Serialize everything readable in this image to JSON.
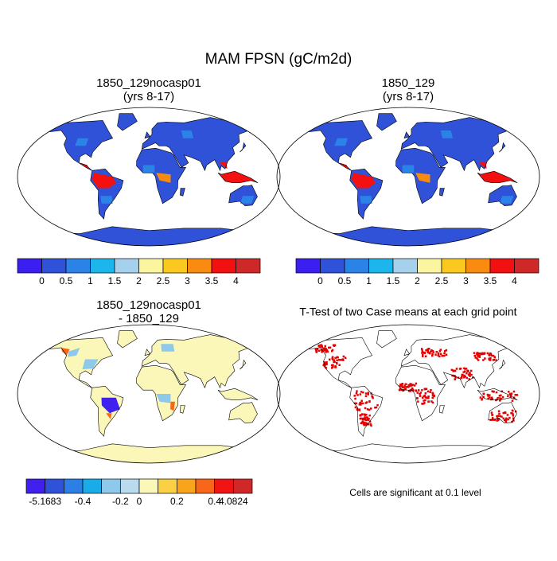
{
  "title": "MAM FPSN (gC/m2d)",
  "panels": [
    {
      "title_lines": [
        "1850_129nocasp01",
        "(yrs 8-17)"
      ]
    },
    {
      "title_lines": [
        "1850_129",
        "(yrs 8-17)"
      ]
    },
    {
      "title_lines": [
        "1850_129nocasp01",
        "- 1850_129"
      ]
    },
    {
      "title_lines": [
        "T-Test of two Case means at each grid point"
      ],
      "note": "Cells are significant at 0.1 level"
    }
  ],
  "colorbars": [
    {
      "colors": [
        "#3a1ff0",
        "#2f52d8",
        "#2b83e8",
        "#1cb5ec",
        "#a6d1ec",
        "#fbf5a0",
        "#fbc820",
        "#f98c10",
        "#f21010",
        "#cf2828"
      ],
      "labels": [
        "0",
        "0.5",
        "1",
        "1.5",
        "2",
        "2.5",
        "3",
        "3.5",
        "4"
      ]
    },
    {
      "colors": [
        "#3a1ff0",
        "#2f52d8",
        "#2b83e8",
        "#1cb5ec",
        "#a6d1ec",
        "#fbf5a0",
        "#fbc820",
        "#f98c10",
        "#f21010",
        "#cf2828"
      ],
      "labels": [
        "0",
        "0.5",
        "1",
        "1.5",
        "2",
        "2.5",
        "3",
        "3.5",
        "4"
      ]
    },
    {
      "colors": [
        "#4020ef",
        "#2f52d8",
        "#2b7fe5",
        "#1aace8",
        "#8ec8ea",
        "#b8dbee",
        "#fbf7b8",
        "#fad045",
        "#f9a51c",
        "#f8661a",
        "#f01414",
        "#d02828"
      ],
      "labels": [
        "-5.1683",
        "-0.4",
        "-0.2",
        "0",
        "0.2",
        "0.4",
        "4.0824"
      ]
    }
  ]
}
